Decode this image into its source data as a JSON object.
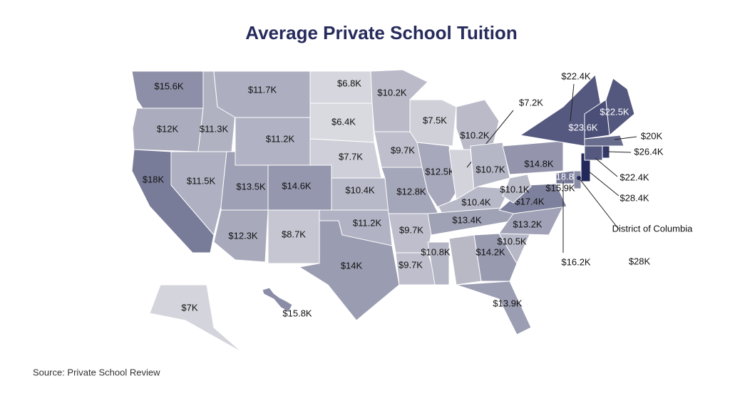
{
  "title": "Average Private School Tuition",
  "source": "Source: Private School Review",
  "color_scale": {
    "low": "#d9d9e0",
    "high": "#23285a"
  },
  "regions": [
    {
      "label": "$15.6K",
      "value": 15.6
    },
    {
      "label": "$12K",
      "value": 12
    },
    {
      "label": "$18K",
      "value": 18
    },
    {
      "label": "$11.3K",
      "value": 11.3
    },
    {
      "label": "$11.5K",
      "value": 11.5
    },
    {
      "label": "$11.7K",
      "value": 11.7
    },
    {
      "label": "$11.2K",
      "value": 11.2
    },
    {
      "label": "$13.5K",
      "value": 13.5
    },
    {
      "label": "$12.3K",
      "value": 12.3
    },
    {
      "label": "$14.6K",
      "value": 14.6
    },
    {
      "label": "$8.7K",
      "value": 8.7
    },
    {
      "label": "$6.8K",
      "value": 6.8
    },
    {
      "label": "$6.4K",
      "value": 6.4
    },
    {
      "label": "$7.7K",
      "value": 7.7
    },
    {
      "label": "$10.4K",
      "value": 10.4
    },
    {
      "label": "$11.2K",
      "value": 11.2
    },
    {
      "label": "$14K",
      "value": 14
    },
    {
      "label": "$10.2K",
      "value": 10.2
    },
    {
      "label": "$9.7K",
      "value": 9.7
    },
    {
      "label": "$12.8K",
      "value": 12.8
    },
    {
      "label": "$9.7K",
      "value": 9.7
    },
    {
      "label": "$9.7K",
      "value": 9.7
    },
    {
      "label": "$7.5K",
      "value": 7.5
    },
    {
      "label": "$12.5K",
      "value": 12.5
    },
    {
      "label": "$10.2K",
      "value": 10.2
    },
    {
      "label": "$7.2K",
      "value": 7.2
    },
    {
      "label": "$10.7K",
      "value": 10.7
    },
    {
      "label": "$10.4K",
      "value": 10.4
    },
    {
      "label": "$13.4K",
      "value": 13.4
    },
    {
      "label": "$10.8K",
      "value": 10.8
    },
    {
      "label": "$14.2K",
      "value": 14.2
    },
    {
      "label": "$13.9K",
      "value": 13.9
    },
    {
      "label": "$10.5K",
      "value": 10.5
    },
    {
      "label": "$13.2K",
      "value": 13.2
    },
    {
      "label": "$17.4K",
      "value": 17.4
    },
    {
      "label": "$10.1K",
      "value": 10.1
    },
    {
      "label": "$14.8K",
      "value": 14.8
    },
    {
      "label": "$18.8K",
      "value": 18.8
    },
    {
      "label": "$15.9K",
      "value": 15.9
    },
    {
      "label": "$28.4K",
      "value": 28.4
    },
    {
      "label": "$22.4K",
      "value": 22.4
    },
    {
      "label": "$22.4K",
      "value": 22.4
    },
    {
      "label": "$26.4K",
      "value": 26.4
    },
    {
      "label": "$20K",
      "value": 20
    },
    {
      "label": "$23.6K",
      "value": 23.6
    },
    {
      "label": "$22.5K",
      "value": 22.5
    },
    {
      "name": "District of Columbia",
      "label": "$28K",
      "value": 28
    },
    {
      "label": "$16.2K",
      "value": 16.2
    },
    {
      "label": "$7K",
      "value": 7
    },
    {
      "label": "$15.8K",
      "value": 15.8
    }
  ]
}
